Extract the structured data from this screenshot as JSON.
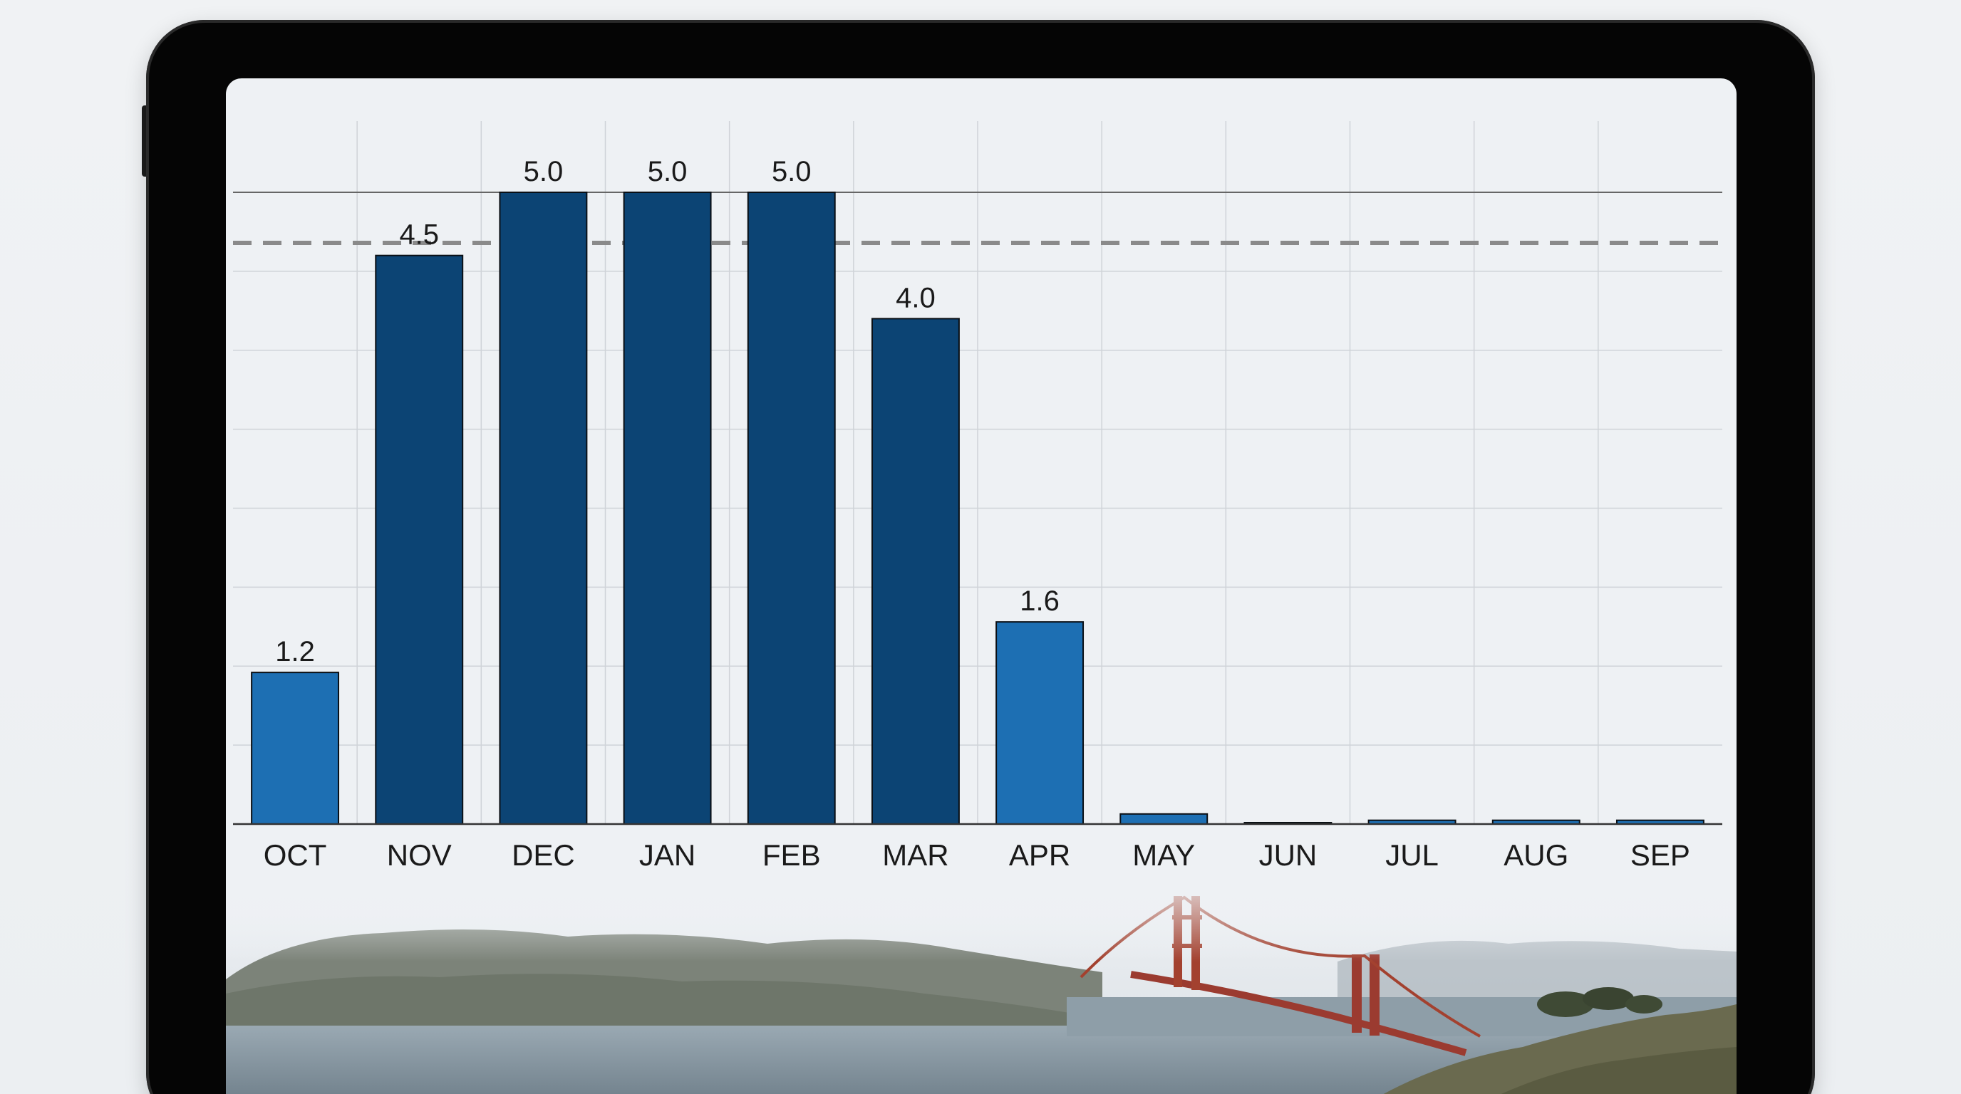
{
  "chart_data": {
    "type": "bar",
    "categories": [
      "OCT",
      "NOV",
      "DEC",
      "JAN",
      "FEB",
      "MAR",
      "APR",
      "MAY",
      "JUN",
      "JUL",
      "AUG",
      "SEP"
    ],
    "values": [
      1.2,
      4.5,
      5.0,
      5.0,
      5.0,
      4.0,
      1.6,
      0.08,
      0.01,
      0.03,
      0.03,
      0.03
    ],
    "data_labels": [
      "1.2",
      "4.5",
      "5.0",
      "5.0",
      "5.0",
      "4.0",
      "1.6",
      "",
      "",
      "",
      "",
      ""
    ],
    "bar_colors": [
      "#1d6fb3",
      "#0c4474",
      "#0c4474",
      "#0c4474",
      "#0c4474",
      "#0c4474",
      "#1d6fb3",
      "#1d6fb3",
      "#1d6fb3",
      "#1d6fb3",
      "#1d6fb3",
      "#1d6fb3"
    ],
    "ylim": [
      0,
      5.0
    ],
    "reference_line": {
      "value": 4.6,
      "style": "dashed",
      "color": "#8a8a8a"
    },
    "grid": true,
    "title": "",
    "xlabel": "",
    "ylabel": ""
  },
  "colors": {
    "dark_bar": "#0c4474",
    "light_bar": "#1d6fb3",
    "grid": "#cfd3d8",
    "axis": "#333333",
    "text": "#1a1a1a"
  },
  "background_photo": "golden-gate-bridge-fog-landscape"
}
